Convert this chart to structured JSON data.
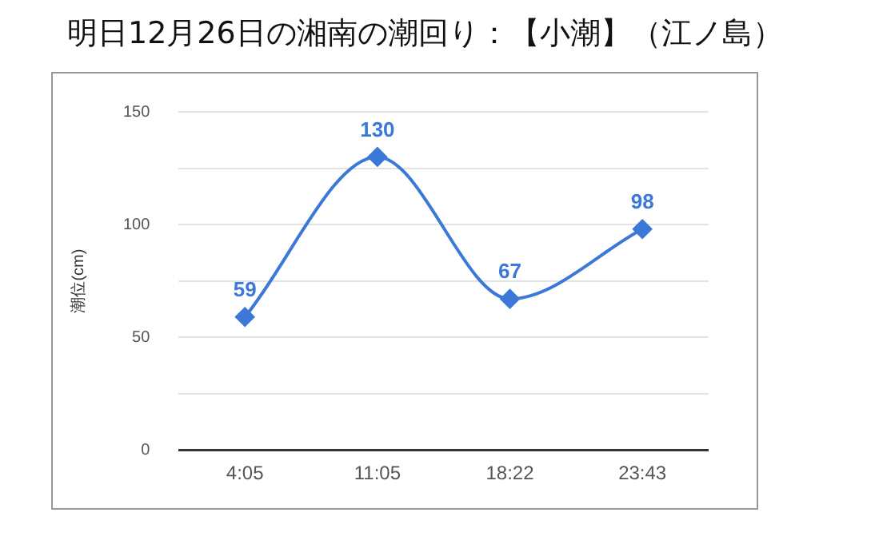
{
  "chart_data": {
    "type": "line",
    "title": "明日12月26日の湘南の潮回り：【小潮】（江ノ島）",
    "ylabel": "潮位(cm)",
    "categories": [
      "4:05",
      "11:05",
      "18:22",
      "23:43"
    ],
    "series": [
      {
        "color": "#3c78d8",
        "values": [
          59,
          130,
          67,
          98
        ]
      }
    ],
    "ylim": [
      0,
      150
    ],
    "yticks": [
      0,
      {
        "value": 25,
        "label": null
      },
      50,
      {
        "value": 75,
        "label": null
      },
      100,
      {
        "value": 125,
        "label": null
      },
      150
    ],
    "grid": "y",
    "legend": false,
    "marker": "diamond",
    "line_style": "solid",
    "data_labels": true
  }
}
